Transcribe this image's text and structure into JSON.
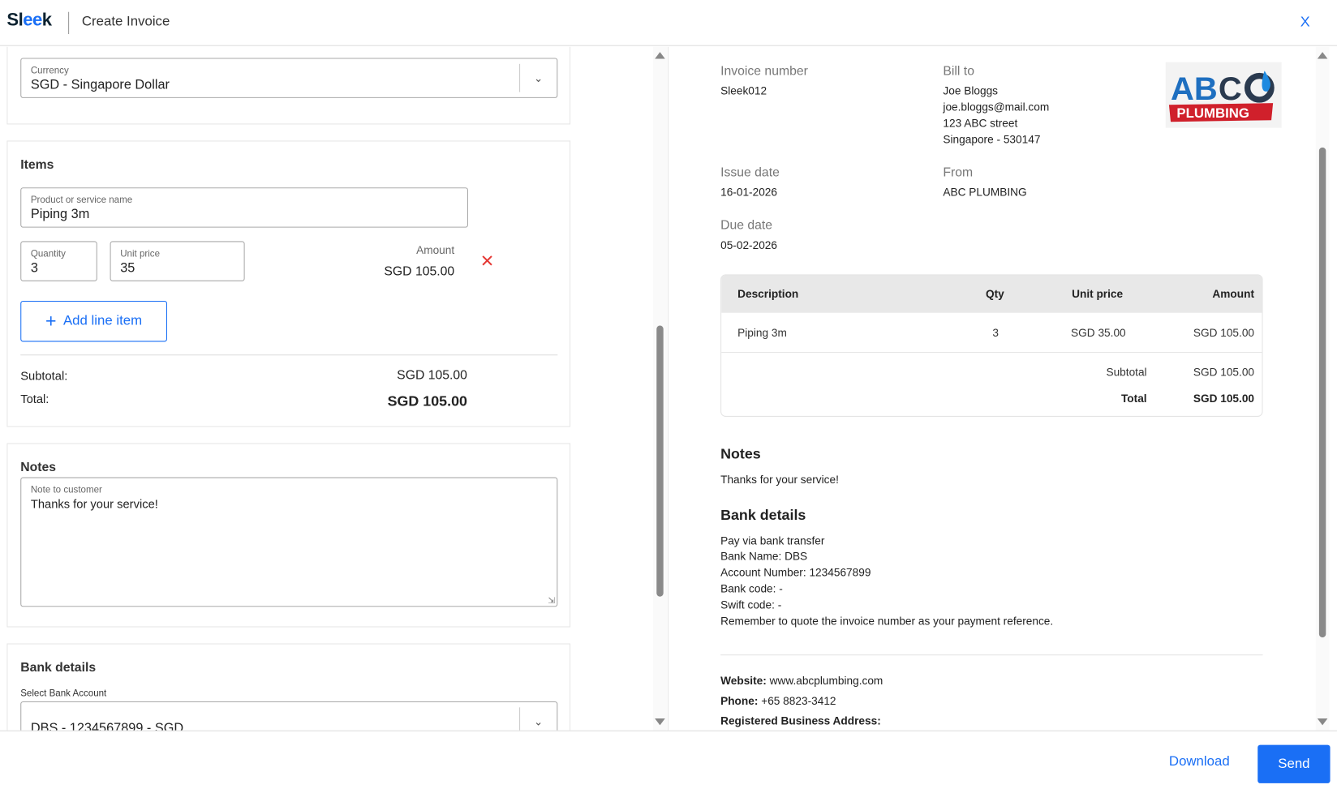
{
  "header": {
    "logo": "Sleek",
    "title": "Create Invoice",
    "close": "X"
  },
  "form": {
    "currency": {
      "label": "Currency",
      "value": "SGD - Singapore Dollar"
    },
    "items": {
      "title": "Items",
      "product_label": "Product or service name",
      "product_value": "Piping 3m",
      "qty_label": "Quantity",
      "qty_value": "3",
      "price_label": "Unit price",
      "price_value": "35",
      "amount_label": "Amount",
      "amount_value": "SGD 105.00",
      "add_label": "Add line item",
      "subtotal_label": "Subtotal:",
      "subtotal_value": "SGD 105.00",
      "total_label": "Total:",
      "total_value": "SGD 105.00"
    },
    "notes": {
      "title": "Notes",
      "label": "Note to customer",
      "value": "Thanks for your service!"
    },
    "bank": {
      "title": "Bank details",
      "label": "Select Bank Account",
      "value": "DBS - 1234567899 - SGD"
    }
  },
  "preview": {
    "logo_text": "ABC PLUMBING",
    "invoice_number_label": "Invoice number",
    "invoice_number": "Sleek012",
    "bill_to_label": "Bill to",
    "bill_to": [
      "Joe Bloggs",
      "joe.bloggs@mail.com",
      "123 ABC street",
      "Singapore - 530147"
    ],
    "issue_date_label": "Issue date",
    "issue_date": "16-01-2026",
    "from_label": "From",
    "from": "ABC PLUMBING",
    "due_date_label": "Due date",
    "due_date": "05-02-2026",
    "table": {
      "headers": [
        "Description",
        "Qty",
        "Unit price",
        "Amount"
      ],
      "rows": [
        [
          "Piping 3m",
          "3",
          "SGD 35.00",
          "SGD 105.00"
        ]
      ],
      "subtotal_label": "Subtotal",
      "subtotal": "SGD 105.00",
      "total_label": "Total",
      "total": "SGD 105.00"
    },
    "notes_title": "Notes",
    "notes": "Thanks for your service!",
    "bank_title": "Bank details",
    "bank_lines": [
      "Pay via bank transfer",
      "Bank Name: DBS",
      "Account Number: 1234567899",
      "Bank code: -",
      "Swift code: -",
      "Remember to quote the invoice number as your payment reference."
    ],
    "website_label": "Website:",
    "website": "www.abcplumbing.com",
    "phone_label": "Phone:",
    "phone": "+65 8823-3412",
    "address_label": "Registered Business Address:"
  },
  "footer": {
    "download": "Download",
    "send": "Send"
  },
  "colors": {
    "accent": "#1a6ff5",
    "delete": "#e53935"
  }
}
